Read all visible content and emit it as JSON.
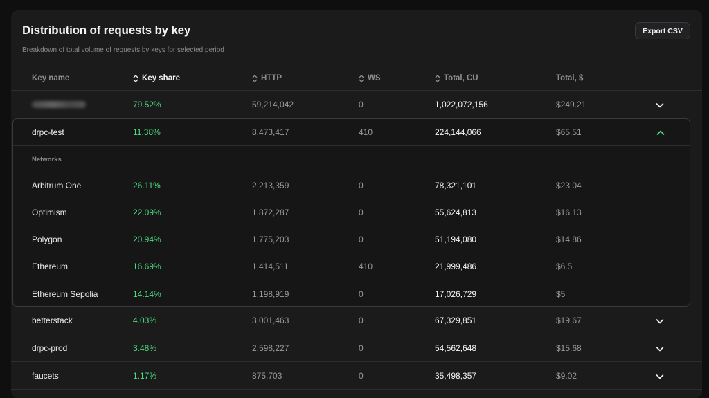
{
  "panel": {
    "title": "Distribution of requests by key",
    "subtitle": "Breakdown of total volume of requests by keys for selected period",
    "export_label": "Export CSV"
  },
  "columns": {
    "key_name": "Key name",
    "key_share": "Key share",
    "http": "HTTP",
    "ws": "WS",
    "total_cu": "Total, CU",
    "total_usd": "Total, $"
  },
  "rows": [
    {
      "name": "",
      "share": "79.52%",
      "http": "59,214,042",
      "ws": "0",
      "cu": "1,022,072,156",
      "usd": "$249.21",
      "state": "collapsed"
    },
    {
      "name": "drpc-test",
      "share": "11.38%",
      "http": "8,473,417",
      "ws": "410",
      "cu": "224,144,066",
      "usd": "$65.51",
      "state": "expanded"
    },
    {
      "name": "betterstack",
      "share": "4.03%",
      "http": "3,001,463",
      "ws": "0",
      "cu": "67,329,851",
      "usd": "$19.67",
      "state": "collapsed"
    },
    {
      "name": "drpc-prod",
      "share": "3.48%",
      "http": "2,598,227",
      "ws": "0",
      "cu": "54,562,648",
      "usd": "$15.68",
      "state": "collapsed"
    },
    {
      "name": "faucets",
      "share": "1.17%",
      "http": "875,703",
      "ws": "0",
      "cu": "35,498,357",
      "usd": "$9.02",
      "state": "collapsed"
    }
  ],
  "networks_label": "Networks",
  "networks": [
    {
      "name": "Arbitrum One",
      "share": "26.11%",
      "http": "2,213,359",
      "ws": "0",
      "cu": "78,321,101",
      "usd": "$23.04"
    },
    {
      "name": "Optimism",
      "share": "22.09%",
      "http": "1,872,287",
      "ws": "0",
      "cu": "55,624,813",
      "usd": "$16.13"
    },
    {
      "name": "Polygon",
      "share": "20.94%",
      "http": "1,775,203",
      "ws": "0",
      "cu": "51,194,080",
      "usd": "$14.86"
    },
    {
      "name": "Ethereum",
      "share": "16.69%",
      "http": "1,414,511",
      "ws": "410",
      "cu": "21,999,486",
      "usd": "$6.5"
    },
    {
      "name": "Ethereum Sepolia",
      "share": "14.14%",
      "http": "1,198,919",
      "ws": "0",
      "cu": "17,026,729",
      "usd": "$5"
    }
  ],
  "colors": {
    "accent_green": "#4ade80",
    "background": "#0f0f0f",
    "card": "#1b1b1c"
  }
}
